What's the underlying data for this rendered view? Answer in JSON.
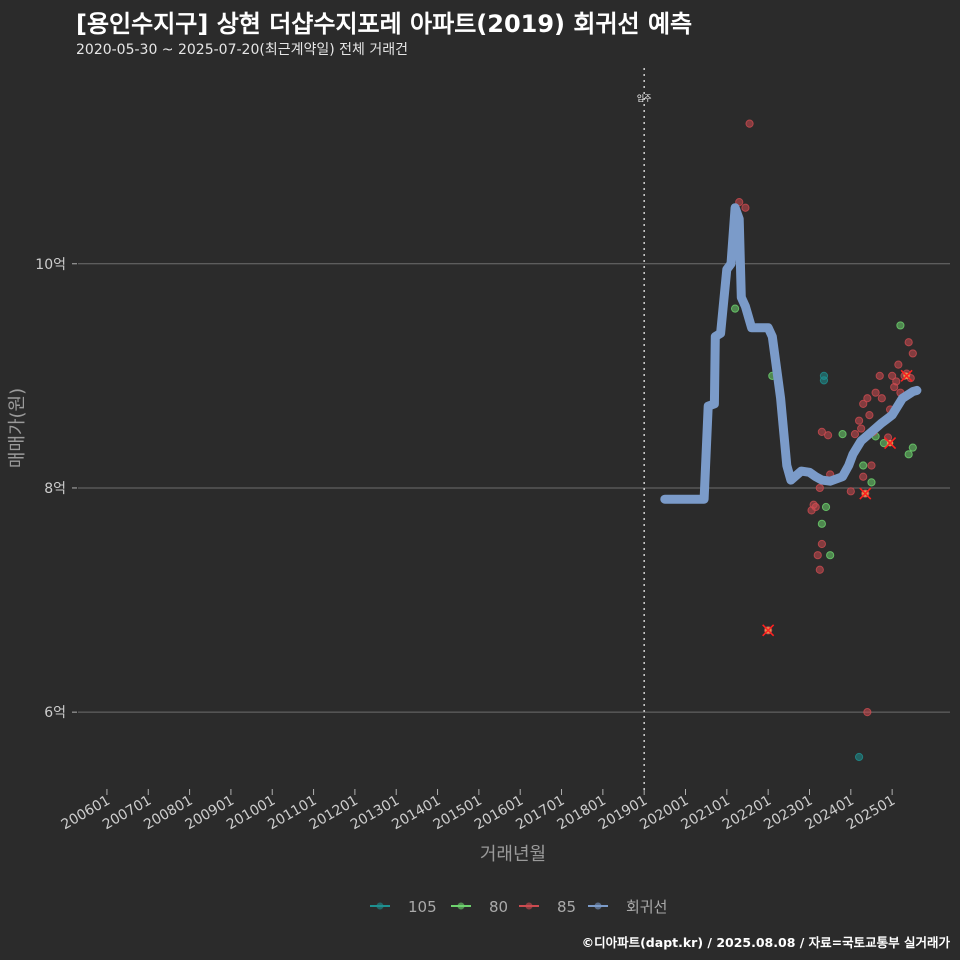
{
  "title": "[용인수지구] 상현 더샵수지포레 아파트(2019) 회귀선 예측",
  "subtitle": "2020-05-30 ~ 2025-07-20(최근계약일) 전체 거래건",
  "caption": "©디아파트(dapt.kr) / 2025.08.08 / 자료=국토교통부 실거래가",
  "colors": {
    "background": "#2b2b2b",
    "grid": "#6e6e6e",
    "s105": "#1e9090",
    "s80": "#6ed36e",
    "s85": "#cc4b50",
    "regression": "#7b9bc9",
    "highlight": "#ff2020"
  },
  "chart_data": {
    "type": "scatter",
    "xlabel": "거래년월",
    "ylabel": "매매가(원)",
    "xlim": [
      2005.3,
      2026.4
    ],
    "ylim": [
      5.35,
      11.8
    ],
    "y_ticks": [
      {
        "value": 6,
        "label": "6억"
      },
      {
        "value": 8,
        "label": "8억"
      },
      {
        "value": 10,
        "label": "10억"
      }
    ],
    "x_ticks": [
      {
        "value": 2006.0,
        "label": "200601"
      },
      {
        "value": 2007.0,
        "label": "200701"
      },
      {
        "value": 2008.0,
        "label": "200801"
      },
      {
        "value": 2009.0,
        "label": "200901"
      },
      {
        "value": 2010.0,
        "label": "201001"
      },
      {
        "value": 2011.0,
        "label": "201101"
      },
      {
        "value": 2012.0,
        "label": "201201"
      },
      {
        "value": 2013.0,
        "label": "201301"
      },
      {
        "value": 2014.0,
        "label": "201401"
      },
      {
        "value": 2015.0,
        "label": "201501"
      },
      {
        "value": 2016.0,
        "label": "201601"
      },
      {
        "value": 2017.0,
        "label": "201701"
      },
      {
        "value": 2018.0,
        "label": "201801"
      },
      {
        "value": 2019.0,
        "label": "201901"
      },
      {
        "value": 2020.0,
        "label": "202001"
      },
      {
        "value": 2021.0,
        "label": "202101"
      },
      {
        "value": 2022.0,
        "label": "202201"
      },
      {
        "value": 2023.0,
        "label": "202301"
      },
      {
        "value": 2024.0,
        "label": "202401"
      },
      {
        "value": 2025.0,
        "label": "202501"
      }
    ],
    "vline": {
      "x": 2019.0,
      "label": "입주"
    },
    "legend": {
      "position": "bottom",
      "entries": [
        "105",
        "80",
        "85",
        "회귀선"
      ]
    },
    "series": [
      {
        "name": "105",
        "points": [
          [
            2023.35,
            9.0
          ],
          [
            2023.35,
            8.96
          ],
          [
            2024.2,
            5.6
          ]
        ]
      },
      {
        "name": "80",
        "points": [
          [
            2021.2,
            9.6
          ],
          [
            2022.1,
            9.0
          ],
          [
            2023.3,
            7.68
          ],
          [
            2023.4,
            7.83
          ],
          [
            2023.5,
            7.4
          ],
          [
            2023.8,
            8.48
          ],
          [
            2024.3,
            8.2
          ],
          [
            2024.5,
            8.05
          ],
          [
            2024.6,
            8.46
          ],
          [
            2024.8,
            8.4
          ],
          [
            2025.2,
            9.45
          ],
          [
            2025.4,
            8.3
          ],
          [
            2025.5,
            8.36
          ]
        ]
      },
      {
        "name": "85",
        "points": [
          [
            2021.55,
            11.25
          ],
          [
            2021.3,
            10.55
          ],
          [
            2021.45,
            10.5
          ],
          [
            2022.0,
            6.73
          ],
          [
            2023.05,
            7.8
          ],
          [
            2023.1,
            7.85
          ],
          [
            2023.15,
            7.83
          ],
          [
            2023.2,
            7.4
          ],
          [
            2023.25,
            7.27
          ],
          [
            2023.25,
            8.0
          ],
          [
            2023.3,
            7.5
          ],
          [
            2023.3,
            8.5
          ],
          [
            2023.45,
            8.47
          ],
          [
            2023.5,
            8.12
          ],
          [
            2024.0,
            7.97
          ],
          [
            2024.1,
            8.48
          ],
          [
            2024.2,
            8.6
          ],
          [
            2024.25,
            8.53
          ],
          [
            2024.3,
            8.1
          ],
          [
            2024.3,
            8.75
          ],
          [
            2024.35,
            7.95
          ],
          [
            2024.4,
            8.8
          ],
          [
            2024.4,
            6.0
          ],
          [
            2024.45,
            8.65
          ],
          [
            2024.5,
            8.2
          ],
          [
            2024.55,
            8.5
          ],
          [
            2024.6,
            8.85
          ],
          [
            2024.7,
            9.0
          ],
          [
            2024.75,
            8.8
          ],
          [
            2024.9,
            8.45
          ],
          [
            2024.95,
            8.7
          ],
          [
            2025.0,
            9.0
          ],
          [
            2025.05,
            8.9
          ],
          [
            2025.1,
            8.95
          ],
          [
            2025.15,
            9.1
          ],
          [
            2025.2,
            8.85
          ],
          [
            2025.3,
            9.0
          ],
          [
            2025.35,
            9.02
          ],
          [
            2025.4,
            9.3
          ],
          [
            2025.45,
            8.98
          ],
          [
            2025.5,
            9.2
          ]
        ]
      },
      {
        "name": "회귀선",
        "points": [
          [
            2019.5,
            7.9
          ],
          [
            2020.45,
            7.9
          ],
          [
            2020.55,
            8.73
          ],
          [
            2020.7,
            8.75
          ],
          [
            2020.72,
            9.35
          ],
          [
            2020.85,
            9.38
          ],
          [
            2021.0,
            9.95
          ],
          [
            2021.1,
            10.0
          ],
          [
            2021.2,
            10.5
          ],
          [
            2021.3,
            10.4
          ],
          [
            2021.35,
            9.7
          ],
          [
            2021.45,
            9.62
          ],
          [
            2021.6,
            9.43
          ],
          [
            2022.0,
            9.43
          ],
          [
            2022.1,
            9.35
          ],
          [
            2022.3,
            8.8
          ],
          [
            2022.45,
            8.2
          ],
          [
            2022.55,
            8.07
          ],
          [
            2022.8,
            8.15
          ],
          [
            2023.0,
            8.14
          ],
          [
            2023.15,
            8.1
          ],
          [
            2023.3,
            8.07
          ],
          [
            2023.5,
            8.06
          ],
          [
            2023.8,
            8.1
          ],
          [
            2023.95,
            8.2
          ],
          [
            2024.05,
            8.3
          ],
          [
            2024.25,
            8.42
          ],
          [
            2024.5,
            8.5
          ],
          [
            2024.75,
            8.58
          ],
          [
            2025.0,
            8.65
          ],
          [
            2025.25,
            8.8
          ],
          [
            2025.5,
            8.86
          ],
          [
            2025.6,
            8.87
          ]
        ]
      }
    ],
    "highlights": [
      [
        2022.0,
        6.73
      ],
      [
        2024.35,
        7.95
      ],
      [
        2024.95,
        8.4
      ],
      [
        2025.35,
        9.0
      ]
    ]
  }
}
